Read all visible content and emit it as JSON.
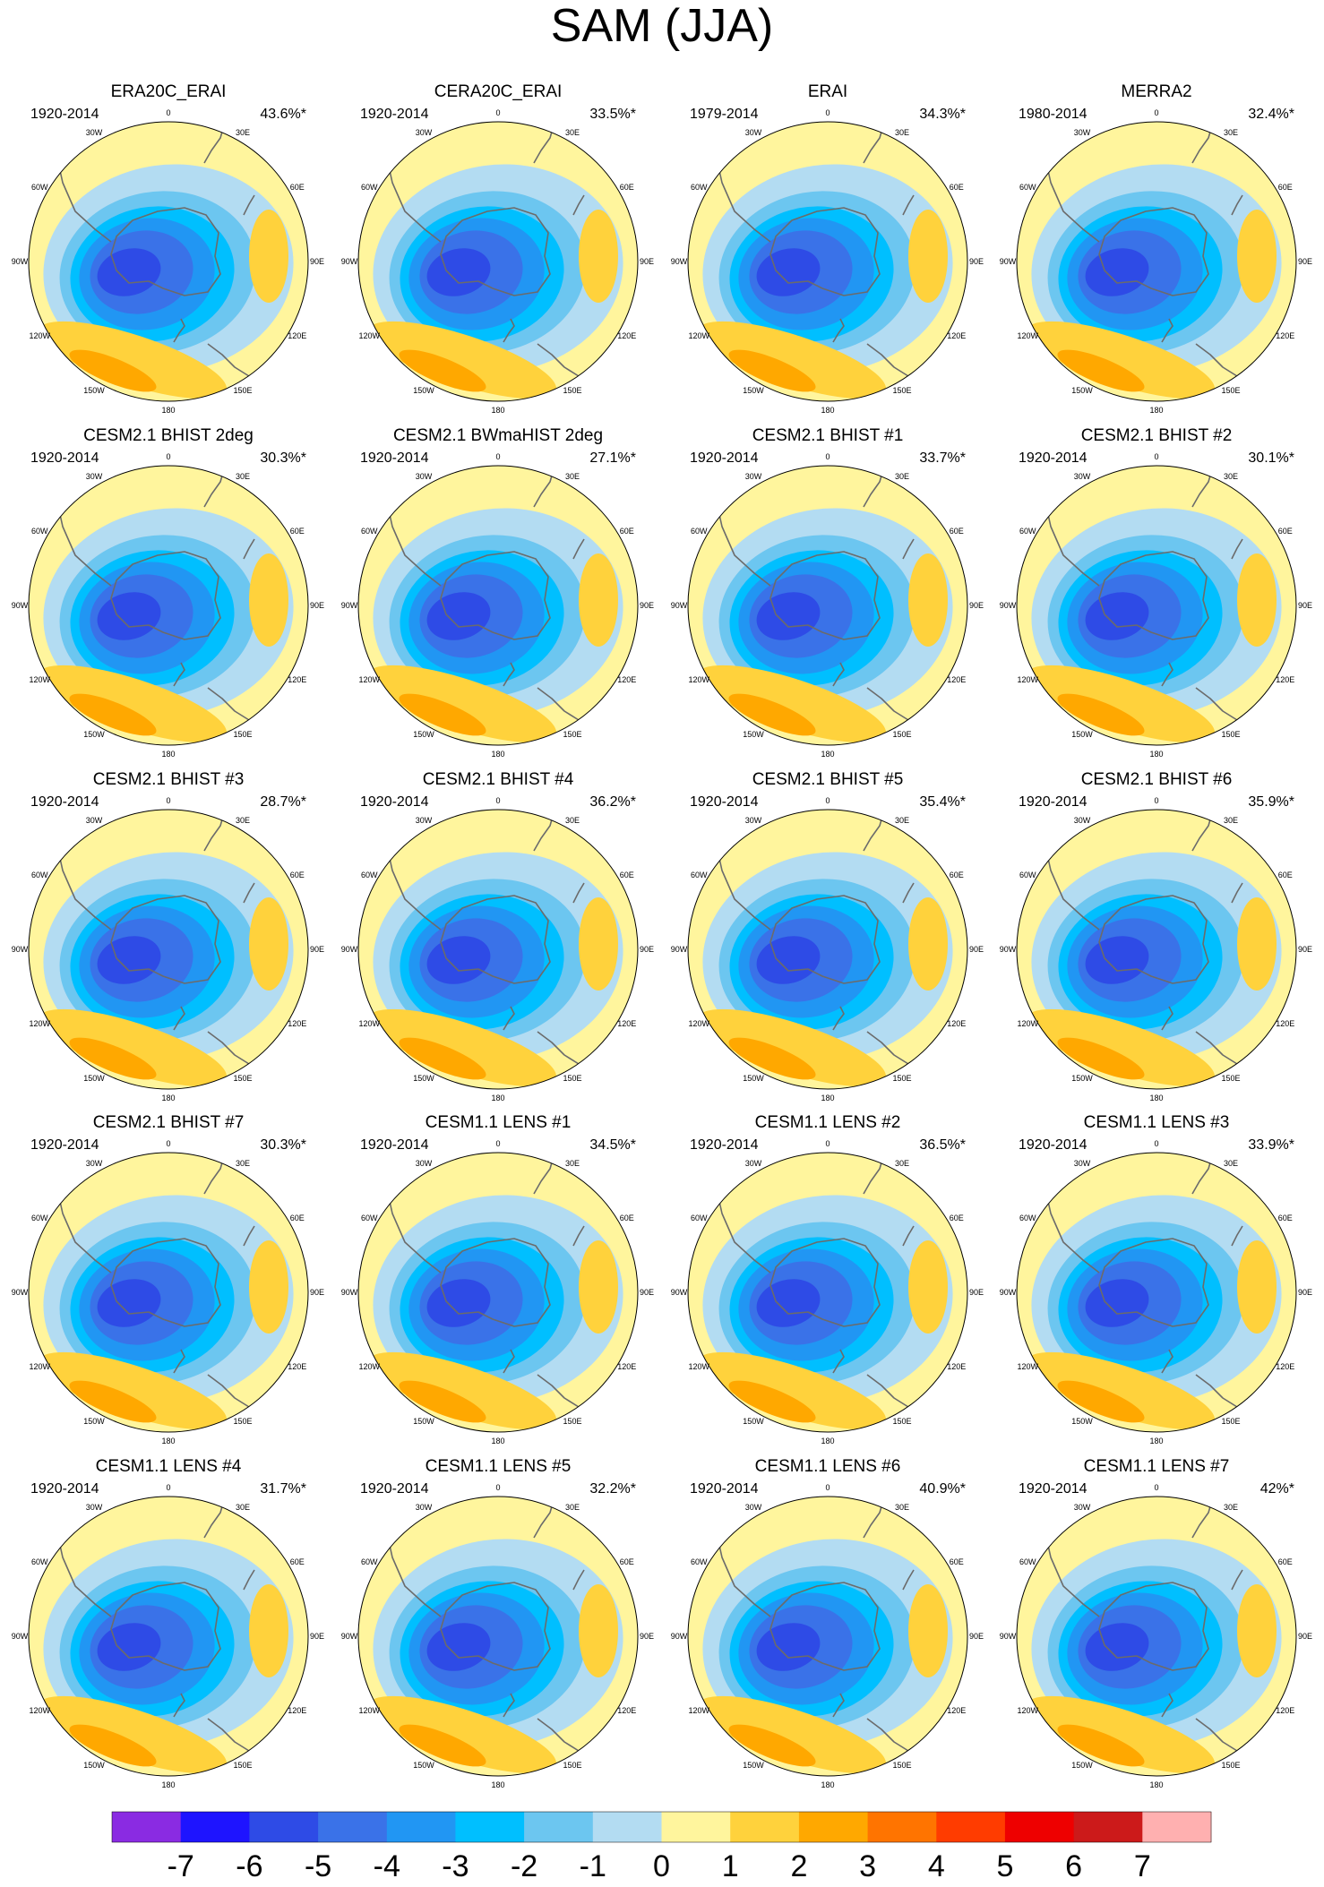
{
  "chart_data": {
    "type": "contour-map-panels",
    "title": "SAM (JJA)",
    "projection": "south polar stereographic",
    "longitude_labels": [
      "0",
      "30E",
      "60E",
      "90E",
      "120E",
      "150E",
      "180",
      "150W",
      "120W",
      "90W",
      "60W",
      "30W"
    ],
    "panels": [
      {
        "name": "ERA20C_ERAI",
        "period": "1920-2014",
        "variance": "43.6%*"
      },
      {
        "name": "CERA20C_ERAI",
        "period": "1920-2014",
        "variance": "33.5%*"
      },
      {
        "name": "ERAI",
        "period": "1979-2014",
        "variance": "34.3%*"
      },
      {
        "name": "MERRA2",
        "period": "1980-2014",
        "variance": "32.4%*"
      },
      {
        "name": "CESM2.1 BHIST 2deg",
        "period": "1920-2014",
        "variance": "30.3%*"
      },
      {
        "name": "CESM2.1 BWmaHIST 2deg",
        "period": "1920-2014",
        "variance": "27.1%*"
      },
      {
        "name": "CESM2.1 BHIST #1",
        "period": "1920-2014",
        "variance": "33.7%*"
      },
      {
        "name": "CESM2.1 BHIST #2",
        "period": "1920-2014",
        "variance": "30.1%*"
      },
      {
        "name": "CESM2.1 BHIST #3",
        "period": "1920-2014",
        "variance": "28.7%*"
      },
      {
        "name": "CESM2.1 BHIST #4",
        "period": "1920-2014",
        "variance": "36.2%*"
      },
      {
        "name": "CESM2.1 BHIST #5",
        "period": "1920-2014",
        "variance": "35.4%*"
      },
      {
        "name": "CESM2.1 BHIST #6",
        "period": "1920-2014",
        "variance": "35.9%*"
      },
      {
        "name": "CESM2.1 BHIST #7",
        "period": "1920-2014",
        "variance": "30.3%*"
      },
      {
        "name": "CESM1.1 LENS #1",
        "period": "1920-2014",
        "variance": "34.5%*"
      },
      {
        "name": "CESM1.1 LENS #2",
        "period": "1920-2014",
        "variance": "36.5%*"
      },
      {
        "name": "CESM1.1 LENS #3",
        "period": "1920-2014",
        "variance": "33.9%*"
      },
      {
        "name": "CESM1.1 LENS #4",
        "period": "1920-2014",
        "variance": "31.7%*"
      },
      {
        "name": "CESM1.1 LENS #5",
        "period": "1920-2014",
        "variance": "32.2%*"
      },
      {
        "name": "CESM1.1 LENS #6",
        "period": "1920-2014",
        "variance": "40.9%*"
      },
      {
        "name": "CESM1.1 LENS #7",
        "period": "1920-2014",
        "variance": "42%*"
      }
    ],
    "colorbar": {
      "labels": [
        "-7",
        "-6",
        "-5",
        "-4",
        "-3",
        "-2",
        "-1",
        "0",
        "1",
        "2",
        "3",
        "4",
        "5",
        "6",
        "7"
      ],
      "colors": [
        "#8a2be2",
        "#1e14ff",
        "#2e4be6",
        "#3a72e8",
        "#2196f3",
        "#00bfff",
        "#6cc6f0",
        "#b3dcf2",
        "#fff59d",
        "#ffd23c",
        "#ffa800",
        "#ff7400",
        "#ff3c00",
        "#ee0000",
        "#cc1a1a",
        "#ffb0b0"
      ]
    },
    "colors": {
      "bg": "#fff59d",
      "coast": "#6b6b6b",
      "c_m1": "#b3dcf2",
      "c_m2": "#6cc6f0",
      "c_m3": "#00bfff",
      "c_m4": "#2196f3",
      "c_m5": "#3a72e8",
      "c_m6": "#2e4be6",
      "c_m7": "#1e14ff",
      "c_p2": "#ffd23c",
      "c_p3": "#ffa800",
      "c_p4": "#ff7400"
    }
  }
}
